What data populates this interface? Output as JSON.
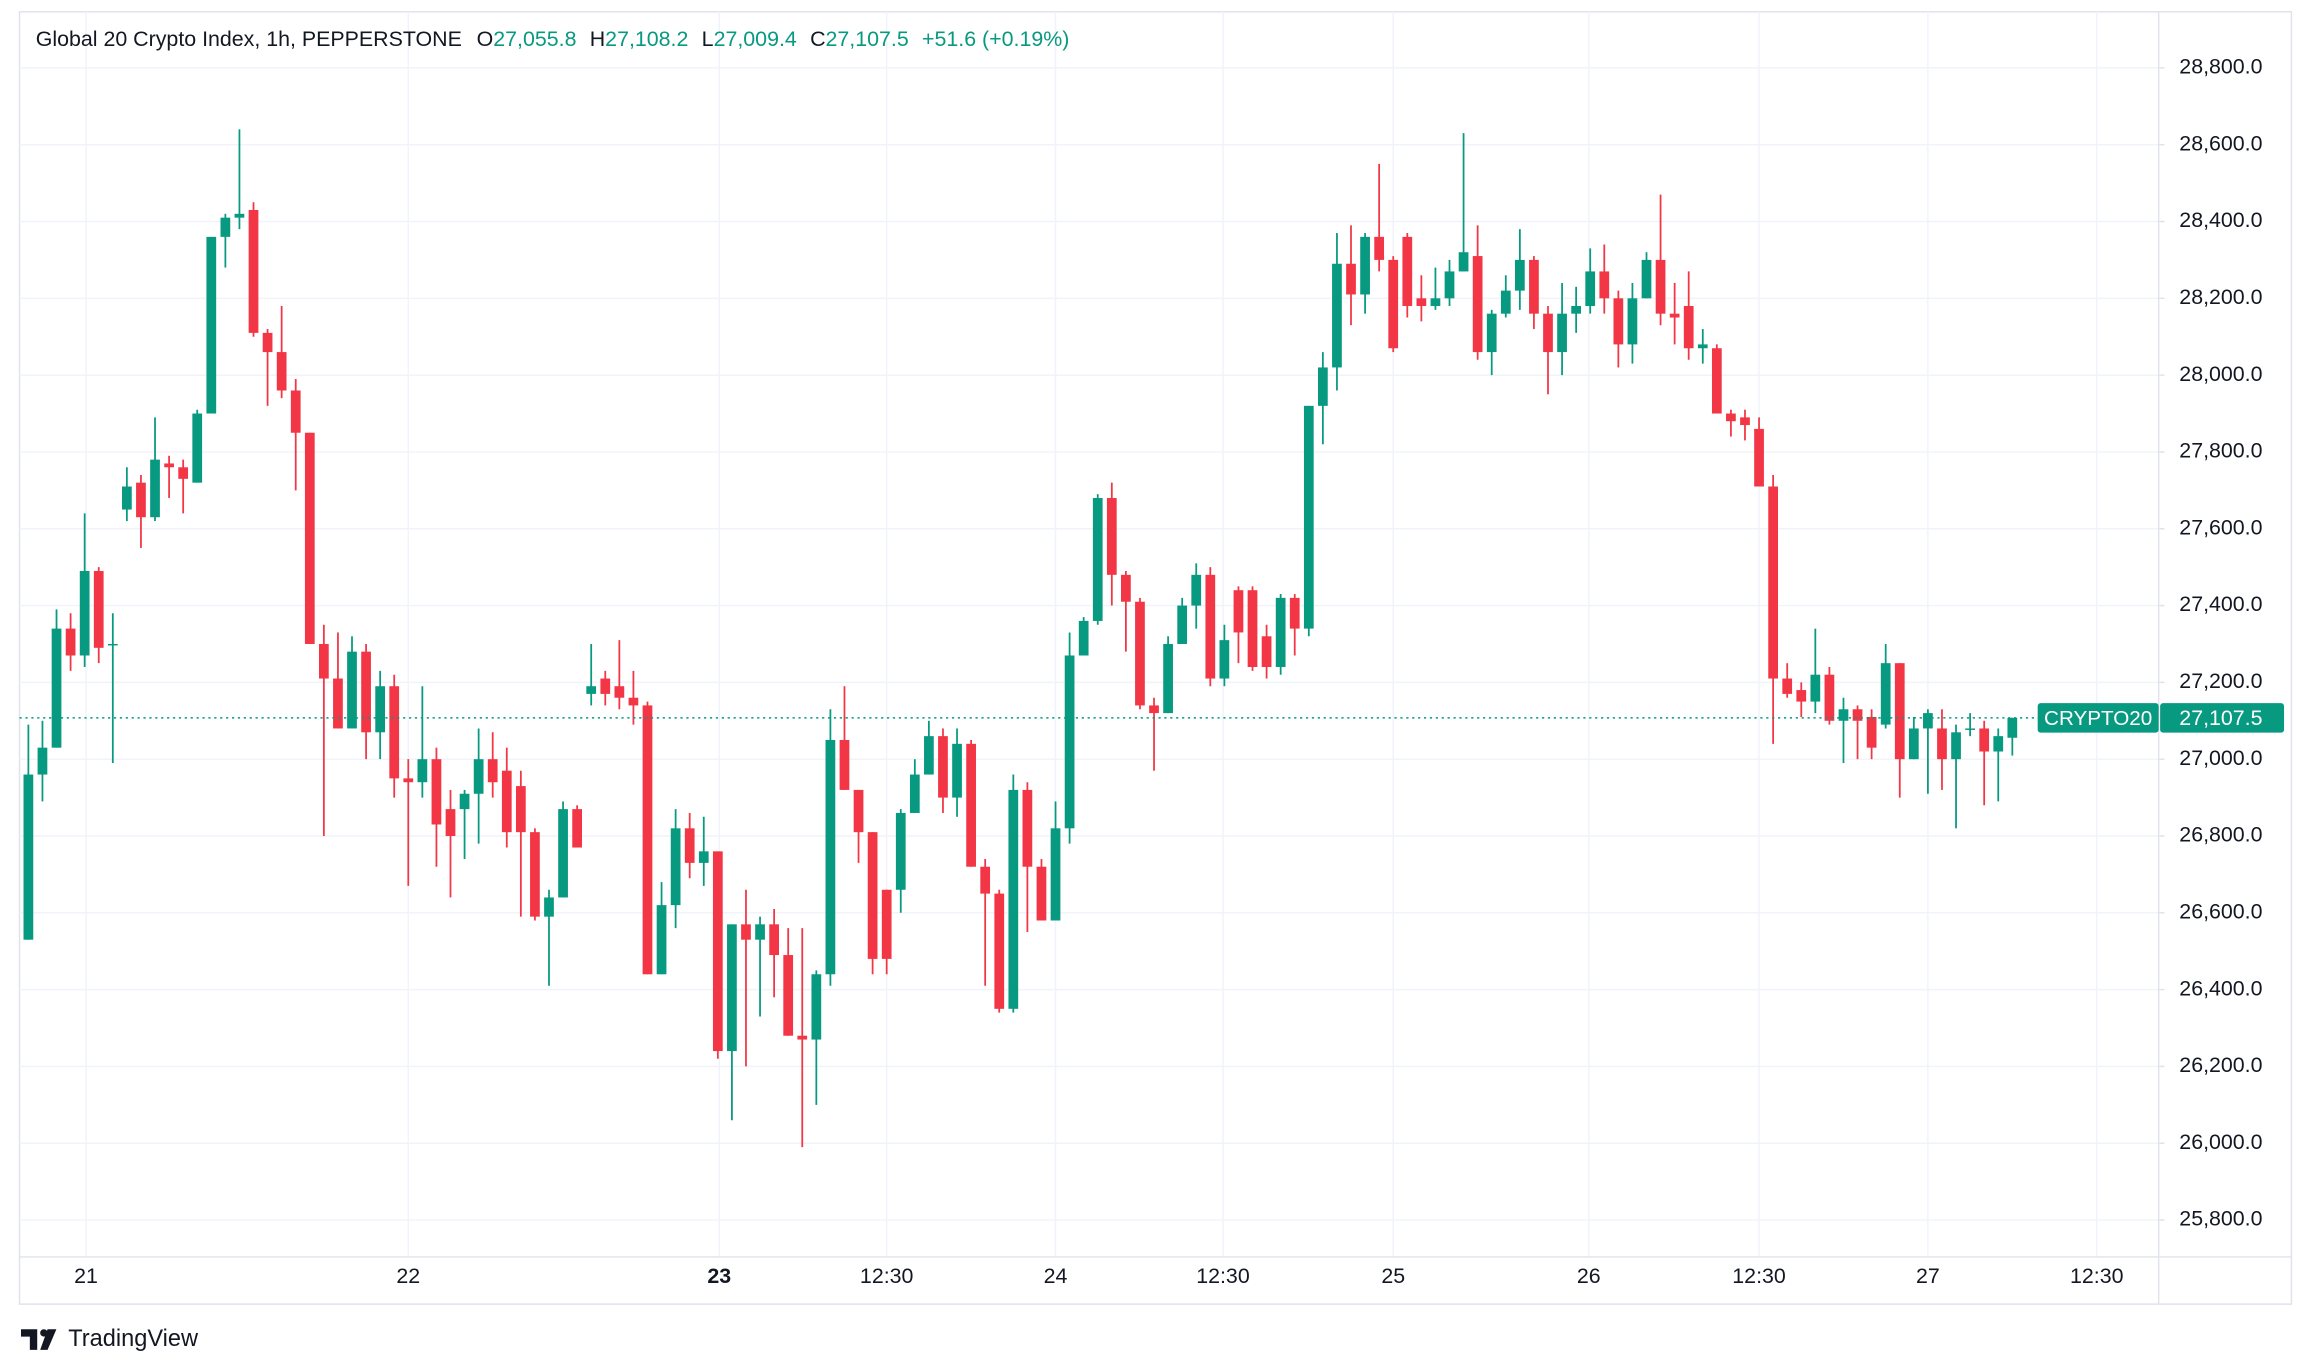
{
  "chart_data": {
    "type": "candlestick",
    "title": "Global 20 Crypto Index, 1h, PEPPERSTONE",
    "ohlc_header": [
      {
        "key": "O",
        "text": "27,055.8"
      },
      {
        "key": "H",
        "text": "27,108.2"
      },
      {
        "key": "L",
        "text": "27,009.4"
      },
      {
        "key": "C",
        "text": "27,107.5"
      }
    ],
    "change_text": "+51.6 (+0.19%)",
    "symbol_tag": "CRYPTO20",
    "last_price": {
      "value": 27107.5,
      "label": "27,107.5"
    },
    "up_color": "#089981",
    "down_color": "#f23645",
    "grid": true,
    "open": [
      26530,
      26960,
      27030,
      27340,
      27270,
      27490,
      27300,
      27650,
      27720,
      27630,
      27770,
      27760,
      27720,
      27900,
      28360,
      28410,
      28430,
      28110,
      28060,
      27960,
      27850,
      27300,
      27210,
      27080,
      27280,
      27070,
      27190,
      26950,
      26940,
      27000,
      26870,
      26870,
      26910,
      27000,
      26970,
      26930,
      26810,
      26590,
      26640,
      26870,
      27170,
      27210,
      27190,
      27160,
      27140,
      26440,
      26620,
      26820,
      26730,
      26760,
      26240,
      26570,
      26530,
      26570,
      26490,
      26280,
      26270,
      26440,
      27050,
      26920,
      26810,
      26660,
      26660,
      26860,
      26960,
      27060,
      26900,
      27040,
      26720,
      26650,
      26350,
      26920,
      26720,
      26580,
      26820,
      27270,
      27360,
      27680,
      27480,
      27410,
      27140,
      27120,
      27300,
      27400,
      27480,
      27210,
      27440,
      27440,
      27320,
      27240,
      27420,
      27340,
      27920,
      28020,
      28290,
      28210,
      28360,
      28300,
      28360,
      28200,
      28180,
      28200,
      28270,
      28310,
      28060,
      28160,
      28220,
      28300,
      28160,
      28060,
      28160,
      28180,
      28270,
      28200,
      28080,
      28200,
      28300,
      28160,
      28180,
      28070,
      28070,
      27900,
      27890,
      27860,
      27710,
      27210,
      27180,
      27150,
      27220,
      27100,
      27130,
      27110,
      27090,
      27250,
      27000,
      27080,
      27080,
      27000,
      27080,
      27080,
      27020,
      27055.8
    ],
    "high": [
      27090,
      27100,
      27390,
      27380,
      27640,
      27500,
      27380,
      27760,
      27740,
      27890,
      27790,
      27780,
      27910,
      28360,
      28420,
      28640,
      28450,
      28120,
      28180,
      27990,
      27850,
      27350,
      27330,
      27320,
      27300,
      27230,
      27220,
      27000,
      27190,
      27030,
      26920,
      26920,
      27080,
      27070,
      27030,
      26970,
      26820,
      26660,
      26890,
      26880,
      27300,
      27230,
      27310,
      27230,
      27150,
      26680,
      26870,
      26860,
      26850,
      26760,
      26570,
      26660,
      26590,
      26610,
      26560,
      26560,
      26450,
      27130,
      27190,
      26920,
      26810,
      26660,
      26870,
      27000,
      27100,
      27080,
      27080,
      27050,
      26740,
      26660,
      26960,
      26940,
      26740,
      26890,
      27330,
      27370,
      27690,
      27720,
      27490,
      27420,
      27160,
      27320,
      27420,
      27510,
      27500,
      27350,
      27450,
      27450,
      27350,
      27430,
      27430,
      27920,
      28060,
      28370,
      28390,
      28370,
      28550,
      28310,
      28370,
      28260,
      28280,
      28300,
      28630,
      28390,
      28170,
      28260,
      28380,
      28310,
      28180,
      28240,
      28230,
      28330,
      28340,
      28220,
      28240,
      28320,
      28470,
      28240,
      28270,
      28120,
      28080,
      27910,
      27910,
      27890,
      27740,
      27250,
      27200,
      27340,
      27240,
      27160,
      27140,
      27130,
      27300,
      27250,
      27110,
      27130,
      27130,
      27090,
      27120,
      27100,
      27080,
      27108.2
    ],
    "low": [
      26530,
      26890,
      27030,
      27230,
      27240,
      27250,
      26990,
      27620,
      27550,
      27620,
      27680,
      27640,
      27720,
      27900,
      28280,
      28380,
      28100,
      27920,
      27940,
      27700,
      27300,
      26800,
      27080,
      27080,
      27000,
      27000,
      26900,
      26670,
      26900,
      26720,
      26640,
      26740,
      26780,
      26900,
      26770,
      26590,
      26580,
      26410,
      26640,
      26770,
      27140,
      27140,
      27130,
      27090,
      26440,
      26440,
      26560,
      26690,
      26670,
      26220,
      26060,
      26200,
      26330,
      26380,
      26280,
      25990,
      26100,
      26410,
      26920,
      26730,
      26440,
      26440,
      26600,
      26860,
      26960,
      26860,
      26850,
      26720,
      26410,
      26340,
      26340,
      26550,
      26580,
      26580,
      26780,
      27270,
      27350,
      27400,
      27280,
      27130,
      26970,
      27120,
      27300,
      27340,
      27190,
      27190,
      27250,
      27230,
      27210,
      27220,
      27270,
      27320,
      27820,
      27960,
      28130,
      28160,
      28270,
      28060,
      28150,
      28140,
      28170,
      28180,
      28270,
      28040,
      28000,
      28150,
      28170,
      28120,
      27950,
      28000,
      28110,
      28160,
      28160,
      28020,
      28030,
      28200,
      28130,
      28080,
      28040,
      28030,
      27900,
      27840,
      27830,
      27710,
      27040,
      27160,
      27110,
      27120,
      27090,
      26990,
      27000,
      27000,
      27080,
      26900,
      27000,
      26910,
      26920,
      26820,
      27060,
      26880,
      26890,
      27009.4
    ],
    "close": [
      26960,
      27030,
      27340,
      27270,
      27490,
      27290,
      27300,
      27710,
      27630,
      27780,
      27760,
      27730,
      27900,
      28360,
      28410,
      28420,
      28110,
      28060,
      27960,
      27850,
      27300,
      27210,
      27080,
      27280,
      27070,
      27190,
      26950,
      26940,
      27000,
      26830,
      26800,
      26910,
      27000,
      26940,
      26810,
      26810,
      26590,
      26640,
      26870,
      26770,
      27190,
      27170,
      27160,
      27140,
      26440,
      26620,
      26820,
      26730,
      26760,
      26240,
      26570,
      26530,
      26570,
      26490,
      26280,
      26270,
      26440,
      27050,
      26920,
      26810,
      26480,
      26480,
      26860,
      26960,
      27060,
      26900,
      27040,
      26720,
      26650,
      26350,
      26920,
      26720,
      26580,
      26820,
      27270,
      27360,
      27680,
      27480,
      27410,
      27140,
      27120,
      27300,
      27400,
      27480,
      27210,
      27310,
      27330,
      27240,
      27240,
      27420,
      27340,
      27920,
      28020,
      28290,
      28210,
      28360,
      28300,
      28070,
      28180,
      28180,
      28200,
      28270,
      28320,
      28060,
      28160,
      28220,
      28300,
      28160,
      28060,
      28160,
      28180,
      28270,
      28200,
      28080,
      28200,
      28300,
      28160,
      28150,
      28070,
      28080,
      27900,
      27880,
      27870,
      27710,
      27210,
      27170,
      27150,
      27220,
      27100,
      27130,
      27100,
      27030,
      27250,
      27000,
      27080,
      27120,
      27000,
      27070,
      27080,
      27020,
      27060,
      27107.5
    ],
    "xlim": [
      -0.63,
      151.4
    ],
    "xticks": [
      {
        "value": 4.1,
        "label": "21"
      },
      {
        "value": 27.0,
        "label": "22"
      },
      {
        "value": 49.1,
        "label": "23"
      },
      {
        "value": 61.0,
        "label": "12:30"
      },
      {
        "value": 73.0,
        "label": "24"
      },
      {
        "value": 84.9,
        "label": "12:30"
      },
      {
        "value": 97.0,
        "label": "25"
      },
      {
        "value": 110.9,
        "label": "26"
      },
      {
        "value": 123.0,
        "label": "12:30"
      },
      {
        "value": 135.0,
        "label": "27"
      },
      {
        "value": 147.0,
        "label": "12:30"
      }
    ],
    "ylim": [
      25704,
      28946
    ],
    "yticks": [
      {
        "value": 25800,
        "label": "25,800.0"
      },
      {
        "value": 26000,
        "label": "26,000.0"
      },
      {
        "value": 26200,
        "label": "26,200.0"
      },
      {
        "value": 26400,
        "label": "26,400.0"
      },
      {
        "value": 26600,
        "label": "26,600.0"
      },
      {
        "value": 26800,
        "label": "26,800.0"
      },
      {
        "value": 27000,
        "label": "27,000.0"
      },
      {
        "value": 27200,
        "label": "27,200.0"
      },
      {
        "value": 27400,
        "label": "27,400.0"
      },
      {
        "value": 27600,
        "label": "27,600.0"
      },
      {
        "value": 27800,
        "label": "27,800.0"
      },
      {
        "value": 28000,
        "label": "28,000.0"
      },
      {
        "value": 28200,
        "label": "28,200.0"
      },
      {
        "value": 28400,
        "label": "28,400.0"
      },
      {
        "value": 28600,
        "label": "28,600.0"
      },
      {
        "value": 28800,
        "label": "28,800.0"
      }
    ],
    "brand": "TradingView"
  }
}
